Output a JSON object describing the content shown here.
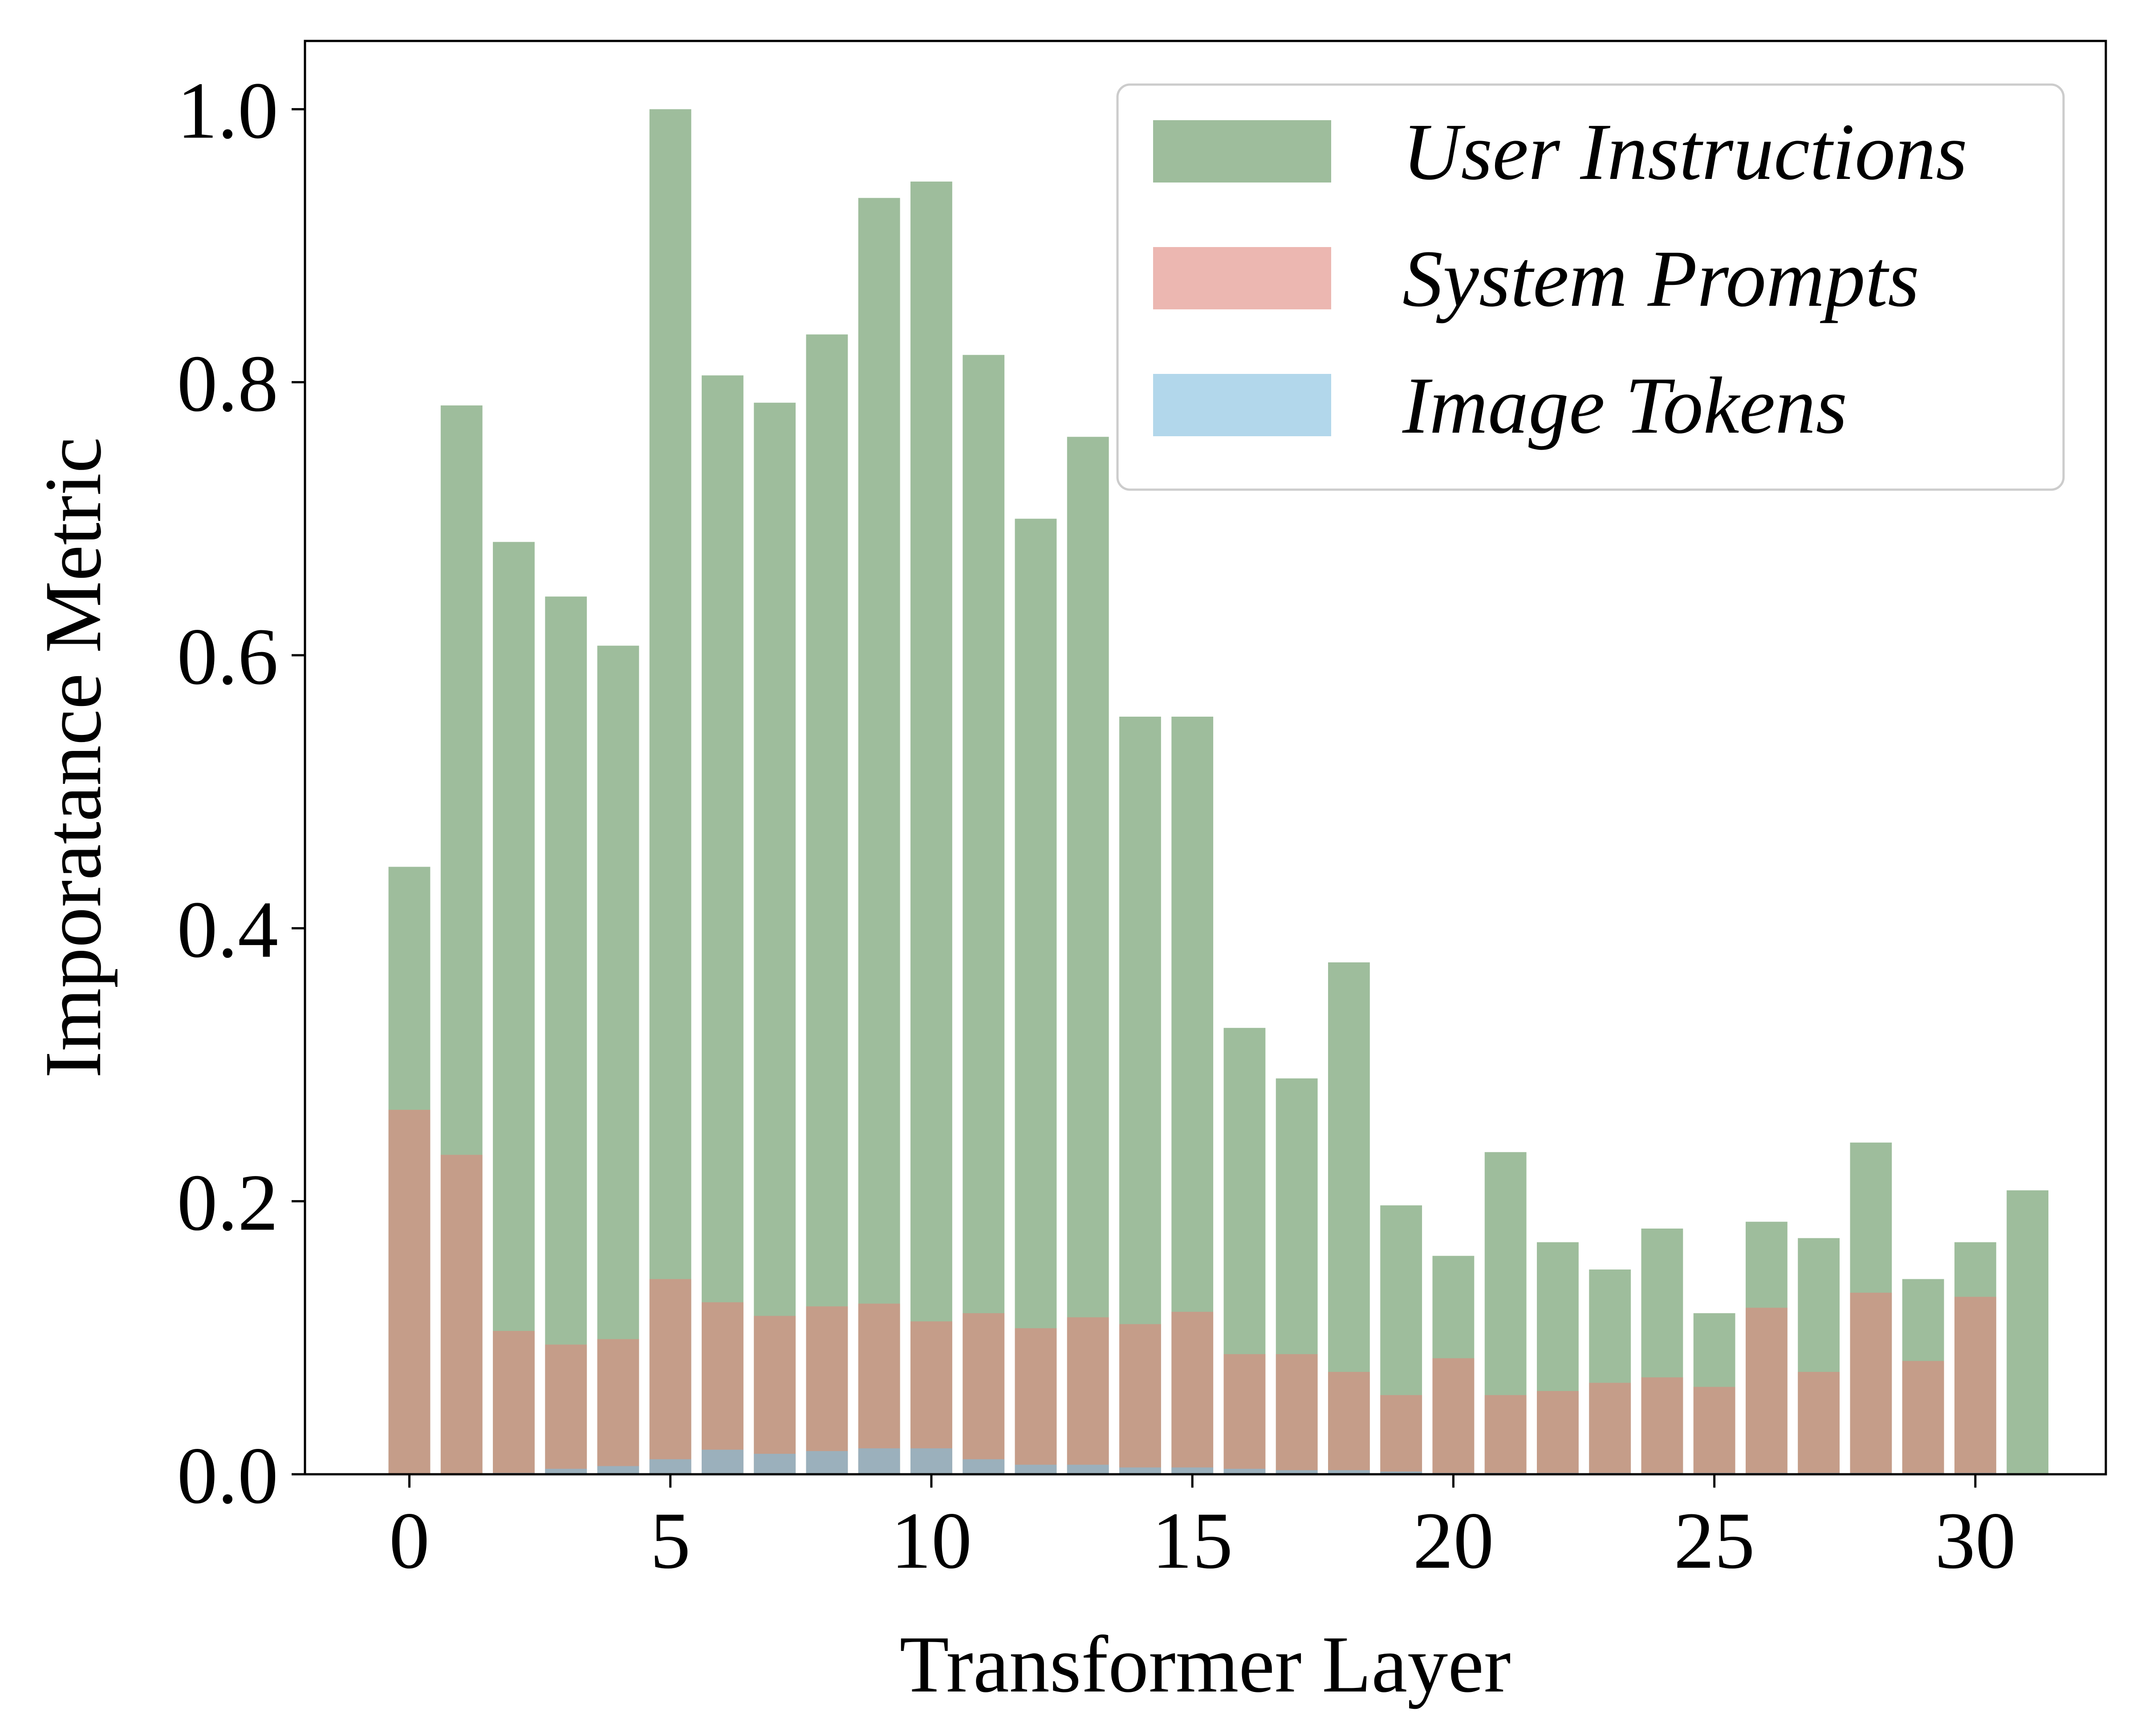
{
  "chart_data": {
    "type": "bar",
    "xlabel": "Transformer Layer",
    "ylabel": "Imporatance Metric",
    "ylim": [
      0,
      1.05
    ],
    "xlim": [
      -2,
      32.5
    ],
    "xticks": [
      0,
      5,
      10,
      15,
      20,
      25,
      30
    ],
    "yticks": [
      0.0,
      0.2,
      0.4,
      0.6,
      0.8,
      1.0
    ],
    "xtick_labels": [
      "0",
      "5",
      "10",
      "15",
      "20",
      "25",
      "30"
    ],
    "ytick_labels": [
      "0.0",
      "0.2",
      "0.4",
      "0.6",
      "0.8",
      "1.0"
    ],
    "legend_position": "top-right",
    "grid": false,
    "bar_alpha": 0.6,
    "categories": [
      0,
      1,
      2,
      3,
      4,
      5,
      6,
      7,
      8,
      9,
      10,
      11,
      12,
      13,
      14,
      15,
      16,
      17,
      18,
      19,
      20,
      21,
      22,
      23,
      24,
      25,
      26,
      27,
      28,
      29,
      30,
      31
    ],
    "series": [
      {
        "name": "User Instructions",
        "color": "#5e915a",
        "values": [
          0.445,
          0.783,
          0.683,
          0.643,
          0.607,
          1.0,
          0.805,
          0.785,
          0.835,
          0.935,
          0.947,
          0.82,
          0.7,
          0.76,
          0.555,
          0.555,
          0.327,
          0.29,
          0.375,
          0.197,
          0.16,
          0.236,
          0.17,
          0.15,
          0.18,
          0.118,
          0.185,
          0.173,
          0.243,
          0.143,
          0.17,
          0.208
        ]
      },
      {
        "name": "System Prompts",
        "color": "#e0877d",
        "values": [
          0.267,
          0.234,
          0.105,
          0.095,
          0.099,
          0.143,
          0.126,
          0.116,
          0.123,
          0.125,
          0.112,
          0.118,
          0.107,
          0.115,
          0.11,
          0.119,
          0.088,
          0.088,
          0.075,
          0.058,
          0.085,
          0.058,
          0.061,
          0.067,
          0.071,
          0.064,
          0.122,
          0.075,
          0.133,
          0.083,
          0.13,
          0.0
        ]
      },
      {
        "name": "Image Tokens",
        "color": "#7fbddd",
        "values": [
          0.0,
          0.0,
          0.001,
          0.004,
          0.006,
          0.011,
          0.018,
          0.015,
          0.017,
          0.019,
          0.019,
          0.011,
          0.007,
          0.007,
          0.005,
          0.005,
          0.004,
          0.003,
          0.003,
          0.002,
          0.001,
          0.001,
          0.001,
          0.001,
          0.001,
          0.001,
          0.001,
          0.001,
          0.001,
          0.001,
          0.001,
          0.0
        ]
      }
    ]
  }
}
